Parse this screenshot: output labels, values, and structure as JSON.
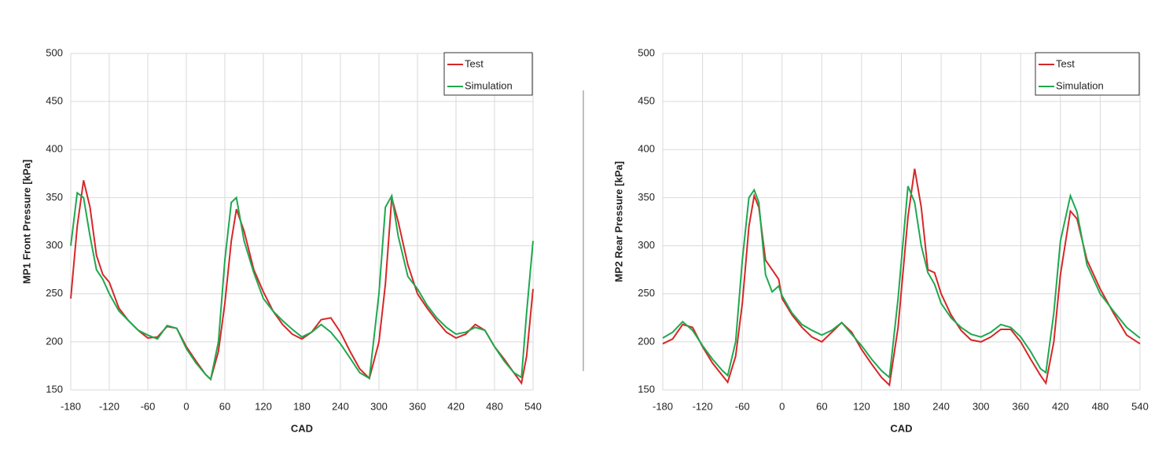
{
  "chart_data": [
    {
      "type": "line",
      "xlabel": "CAD",
      "ylabel": "MP1 Front Pressure [kPa]",
      "xlim": [
        -180,
        540
      ],
      "ylim": [
        150,
        500
      ],
      "xticks": [
        -180,
        -120,
        -60,
        0,
        60,
        120,
        180,
        240,
        300,
        360,
        420,
        480,
        540
      ],
      "yticks": [
        150,
        200,
        250,
        300,
        350,
        400,
        450,
        500
      ],
      "grid": true,
      "legend": "upper right",
      "x": [
        -180,
        -170,
        -160,
        -150,
        -140,
        -130,
        -120,
        -105,
        -90,
        -75,
        -60,
        -45,
        -30,
        -15,
        0,
        15,
        30,
        38,
        50,
        60,
        70,
        78,
        90,
        105,
        120,
        135,
        150,
        165,
        180,
        195,
        210,
        225,
        240,
        255,
        270,
        285,
        300,
        310,
        320,
        330,
        345,
        360,
        375,
        390,
        405,
        420,
        435,
        450,
        465,
        480,
        495,
        510,
        522,
        530,
        540
      ],
      "series": [
        {
          "name": "Test",
          "color": "#d62728",
          "values": [
            245,
            320,
            368,
            340,
            290,
            270,
            262,
            235,
            222,
            212,
            204,
            205,
            216,
            214,
            195,
            180,
            166,
            161,
            190,
            240,
            305,
            338,
            315,
            275,
            252,
            232,
            218,
            208,
            203,
            210,
            223,
            225,
            210,
            190,
            172,
            162,
            200,
            260,
            350,
            325,
            280,
            250,
            235,
            222,
            210,
            204,
            208,
            218,
            212,
            195,
            182,
            168,
            157,
            185,
            255
          ]
        },
        {
          "name": "Simulation",
          "color": "#1fa84f",
          "values": [
            300,
            355,
            350,
            310,
            275,
            265,
            250,
            232,
            222,
            212,
            207,
            203,
            217,
            214,
            193,
            178,
            166,
            161,
            200,
            285,
            345,
            350,
            305,
            272,
            245,
            232,
            222,
            213,
            205,
            210,
            218,
            210,
            198,
            183,
            168,
            162,
            250,
            340,
            352,
            310,
            268,
            255,
            238,
            225,
            215,
            208,
            210,
            215,
            212,
            195,
            180,
            168,
            163,
            230,
            305
          ]
        }
      ]
    },
    {
      "type": "line",
      "xlabel": "CAD",
      "ylabel": "MP2 Rear Pressure [kPa]",
      "xlim": [
        -180,
        540
      ],
      "ylim": [
        150,
        500
      ],
      "xticks": [
        -180,
        -120,
        -60,
        0,
        60,
        120,
        180,
        240,
        300,
        360,
        420,
        480,
        540
      ],
      "yticks": [
        150,
        200,
        250,
        300,
        350,
        400,
        450,
        500
      ],
      "grid": true,
      "legend": "upper right",
      "x": [
        -180,
        -165,
        -150,
        -135,
        -120,
        -105,
        -90,
        -82,
        -70,
        -60,
        -50,
        -42,
        -35,
        -25,
        -15,
        -5,
        0,
        15,
        30,
        45,
        60,
        75,
        90,
        105,
        120,
        135,
        150,
        162,
        175,
        190,
        200,
        210,
        220,
        230,
        240,
        255,
        270,
        285,
        300,
        315,
        330,
        345,
        360,
        375,
        390,
        398,
        410,
        420,
        435,
        445,
        460,
        480,
        500,
        520,
        540
      ],
      "series": [
        {
          "name": "Test",
          "color": "#d62728",
          "values": [
            198,
            203,
            218,
            215,
            195,
            178,
            165,
            158,
            185,
            240,
            320,
            352,
            340,
            285,
            275,
            265,
            245,
            228,
            215,
            205,
            200,
            210,
            220,
            210,
            192,
            177,
            163,
            155,
            215,
            330,
            380,
            340,
            275,
            272,
            250,
            228,
            212,
            202,
            200,
            205,
            213,
            213,
            200,
            182,
            165,
            157,
            200,
            270,
            336,
            328,
            285,
            255,
            230,
            207,
            198
          ]
        },
        {
          "name": "Simulation",
          "color": "#1fa84f",
          "values": [
            204,
            210,
            221,
            212,
            196,
            182,
            170,
            165,
            200,
            285,
            350,
            358,
            345,
            270,
            252,
            258,
            248,
            230,
            218,
            212,
            207,
            212,
            220,
            208,
            196,
            182,
            170,
            163,
            245,
            362,
            345,
            300,
            272,
            260,
            240,
            225,
            215,
            208,
            205,
            210,
            218,
            215,
            205,
            190,
            172,
            168,
            230,
            305,
            352,
            335,
            280,
            250,
            232,
            215,
            204
          ]
        }
      ]
    }
  ]
}
